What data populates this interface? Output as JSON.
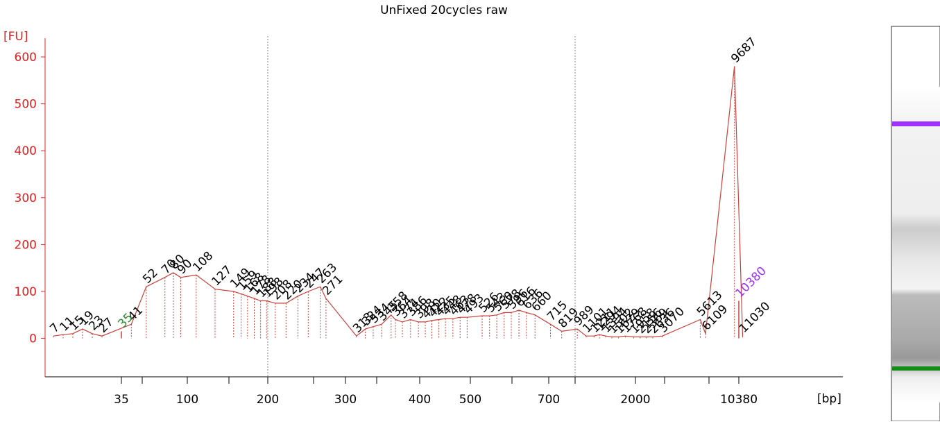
{
  "chart_data": {
    "type": "electropherogram",
    "title": "UnFixed 20cycles raw",
    "y_label": "[FU]",
    "x_label": "[bp]",
    "trace_color": "#c8403a",
    "axis_color": "#e02020",
    "ylim": [
      -82,
      640
    ],
    "yticks": [
      0,
      100,
      200,
      300,
      400,
      500,
      600
    ],
    "xticks": [
      35,
      100,
      200,
      300,
      400,
      500,
      700,
      2000,
      10380
    ],
    "peaks": {
      "x": [
        7,
        11,
        15,
        19,
        23,
        27,
        41,
        52,
        70,
        80,
        90,
        108,
        127,
        149,
        159,
        168,
        178,
        188,
        198,
        208,
        220,
        234,
        247,
        263,
        271,
        313,
        324,
        334,
        345,
        358,
        364,
        374,
        386,
        398,
        410,
        422,
        435,
        448,
        463,
        478,
        493,
        526,
        543,
        560,
        578,
        596,
        616,
        636,
        660,
        715,
        819,
        989,
        1101,
        1211,
        1294,
        1394,
        1502,
        1629,
        1768,
        1958,
        2156,
        2369,
        2636,
        3070,
        5613,
        6109,
        9687,
        11030
      ],
      "values": [
        5,
        8,
        10,
        20,
        10,
        5,
        30,
        110,
        130,
        140,
        130,
        135,
        105,
        100,
        95,
        90,
        85,
        80,
        80,
        75,
        75,
        90,
        100,
        110,
        85,
        5,
        20,
        25,
        30,
        50,
        40,
        35,
        40,
        35,
        35,
        38,
        40,
        42,
        42,
        45,
        45,
        48,
        48,
        50,
        55,
        55,
        60,
        55,
        50,
        30,
        15,
        20,
        5,
        5,
        8,
        5,
        3,
        3,
        5,
        3,
        3,
        3,
        3,
        5,
        40,
        10,
        580,
        5
      ]
    },
    "markers": [
      {
        "x": 35,
        "value": 15,
        "color": "#2e8b2e"
      },
      {
        "x": 10380,
        "value": 80,
        "color": "#9b30ff"
      }
    ]
  }
}
